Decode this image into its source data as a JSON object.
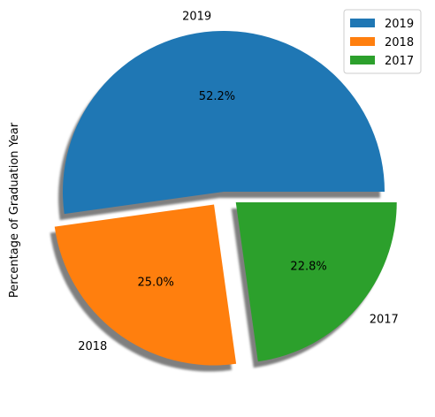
{
  "chart_data": {
    "type": "pie",
    "ylabel": "Percentage of Graduation Year",
    "categories": [
      "2019",
      "2018",
      "2017"
    ],
    "values": [
      52.2,
      25.0,
      22.8
    ],
    "percent_labels": [
      "52.2%",
      "25.0%",
      "22.8%"
    ],
    "colors": [
      "#1f77b4",
      "#ff7f0e",
      "#2ca02c"
    ],
    "explode": [
      0.0,
      0.1,
      0.1
    ],
    "shadow": true,
    "legend": {
      "placement": "top-right",
      "entries": [
        "2019",
        "2018",
        "2017"
      ]
    }
  }
}
